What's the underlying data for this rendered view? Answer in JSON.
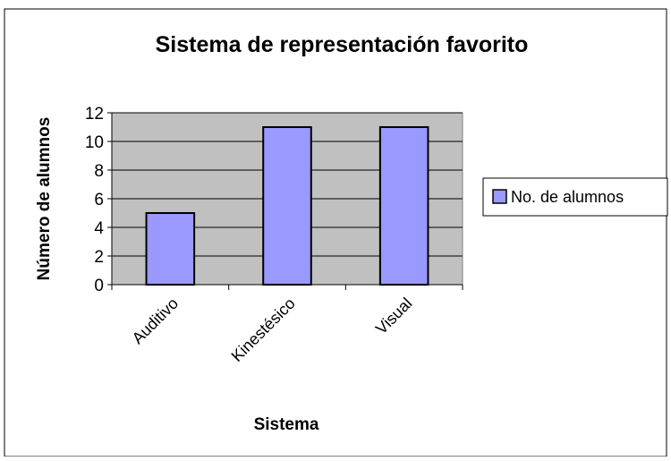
{
  "chart_data": {
    "type": "bar",
    "title": "Sistema de representación  favorito",
    "xlabel": "Sistema",
    "ylabel": "Número de alumnos",
    "categories": [
      "Auditivo",
      "Kinestésico",
      "Visual"
    ],
    "series": [
      {
        "name": "No. de alumnos",
        "values": [
          5,
          11,
          11
        ],
        "color": "#9999ff"
      }
    ],
    "ylim": [
      0,
      12
    ],
    "yticks": [
      0,
      2,
      4,
      6,
      8,
      10,
      12
    ],
    "grid": true,
    "legend": "right",
    "colors": {
      "plot_bg": "#c0c0c0",
      "bar": "#9999ff",
      "border": "#000000"
    }
  }
}
